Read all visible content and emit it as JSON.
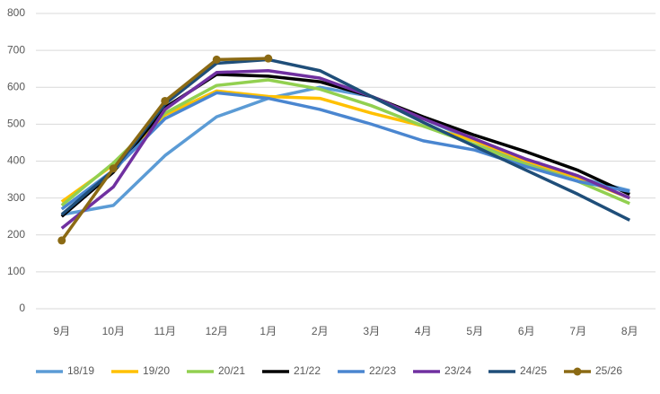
{
  "chart_data": {
    "type": "line",
    "categories": [
      "9月",
      "10月",
      "11月",
      "12月",
      "1月",
      "2月",
      "3月",
      "4月",
      "5月",
      "6月",
      "7月",
      "8月"
    ],
    "ylim": [
      0,
      800
    ],
    "yticks": [
      0,
      100,
      200,
      300,
      400,
      500,
      600,
      700,
      800
    ],
    "grid": true,
    "series": [
      {
        "name": "18/19",
        "color": "#5B9BD5",
        "values": [
          255,
          280,
          415,
          520,
          570,
          600,
          575,
          515,
          455,
          395,
          355,
          320
        ]
      },
      {
        "name": "19/20",
        "color": "#FFC000",
        "values": [
          290,
          390,
          525,
          590,
          575,
          570,
          530,
          495,
          455,
          400,
          355,
          300
        ]
      },
      {
        "name": "20/21",
        "color": "#92D050",
        "values": [
          280,
          395,
          530,
          605,
          620,
          595,
          550,
          495,
          445,
          390,
          345,
          285
        ]
      },
      {
        "name": "21/22",
        "color": "#000000",
        "values": [
          250,
          370,
          545,
          635,
          630,
          615,
          575,
          520,
          470,
          425,
          375,
          310
        ]
      },
      {
        "name": "22/23",
        "color": "#4A86D0",
        "values": [
          270,
          375,
          515,
          585,
          570,
          540,
          500,
          455,
          430,
          385,
          345,
          318
        ]
      },
      {
        "name": "23/24",
        "color": "#7030A0",
        "values": [
          218,
          330,
          540,
          640,
          645,
          625,
          575,
          515,
          460,
          405,
          360,
          300
        ]
      },
      {
        "name": "24/25",
        "color": "#1F4E79",
        "values": [
          255,
          375,
          555,
          665,
          675,
          645,
          575,
          505,
          440,
          375,
          310,
          240
        ]
      },
      {
        "name": "25/26",
        "color": "#8B6A14",
        "marker": true,
        "values": [
          185,
          380,
          563,
          675,
          678,
          null,
          null,
          null,
          null,
          null,
          null,
          null
        ]
      }
    ]
  }
}
